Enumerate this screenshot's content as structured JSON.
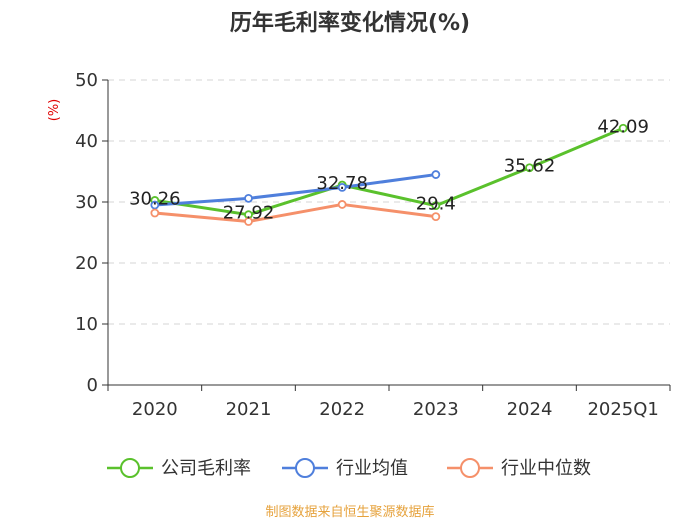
{
  "chart_data": {
    "type": "line",
    "title": "历年毛利率变化情况(%)",
    "ylabel": "(%)",
    "xlabel": "",
    "categories": [
      "2020",
      "2021",
      "2022",
      "2023",
      "2024",
      "2025Q1"
    ],
    "ylim": [
      0,
      50
    ],
    "yticks": [
      0,
      10,
      20,
      30,
      40,
      50
    ],
    "grid": true,
    "legend_position": "bottom",
    "series": [
      {
        "name": "公司毛利率",
        "color": "#5ac12c",
        "values": [
          30.26,
          27.92,
          32.78,
          29.4,
          35.62,
          42.09
        ],
        "labels": [
          "30.26",
          "27.92",
          "32.78",
          "29.4",
          "35.62",
          "42.09"
        ]
      },
      {
        "name": "行业均值",
        "color": "#4f7fdc",
        "values": [
          29.5,
          30.6,
          32.4,
          34.5,
          null,
          null
        ]
      },
      {
        "name": "行业中位数",
        "color": "#f5906a",
        "values": [
          28.2,
          26.8,
          29.6,
          27.6,
          null,
          null
        ]
      }
    ],
    "source": "制图数据来自恒生聚源数据库"
  }
}
